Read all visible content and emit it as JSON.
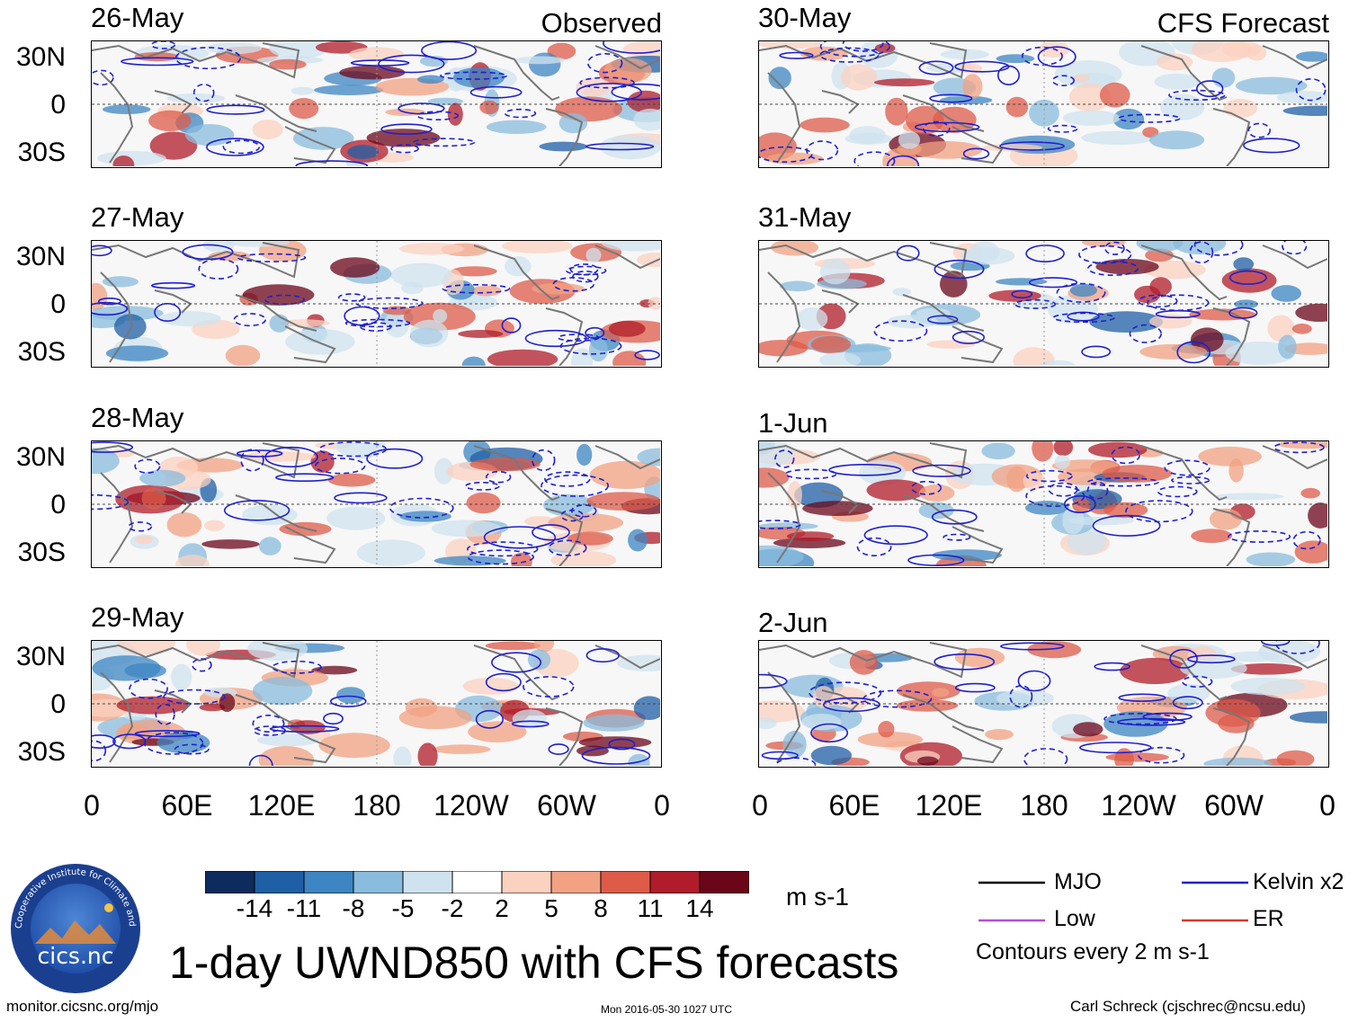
{
  "headers": {
    "observed": "Observed",
    "forecast": "CFS Forecast"
  },
  "panels": [
    {
      "date": "26-May",
      "group": "observed"
    },
    {
      "date": "27-May",
      "group": "observed"
    },
    {
      "date": "28-May",
      "group": "observed"
    },
    {
      "date": "29-May",
      "group": "observed"
    },
    {
      "date": "30-May",
      "group": "forecast"
    },
    {
      "date": "31-May",
      "group": "forecast"
    },
    {
      "date": "1-Jun",
      "group": "forecast"
    },
    {
      "date": "2-Jun",
      "group": "forecast"
    }
  ],
  "y_labels": [
    "30N",
    "0",
    "30S"
  ],
  "x_labels": [
    "0",
    "60E",
    "120E",
    "180",
    "120W",
    "60W",
    "0"
  ],
  "colorbar": {
    "ticks": [
      "-14",
      "-11",
      "-8",
      "-5",
      "-2",
      "2",
      "5",
      "8",
      "11",
      "14"
    ],
    "colors": [
      "#0d2b5c",
      "#1f5fa5",
      "#3d85c3",
      "#8abcdd",
      "#cfe3ef",
      "#ffffff",
      "#fbd2c0",
      "#f2a183",
      "#de5b49",
      "#b01c2a",
      "#6b0519"
    ],
    "units": "m s-1"
  },
  "legend": {
    "mjo": "MJO",
    "kelvin": "Kelvin x2",
    "low": "Low",
    "er": "ER",
    "contours": "Contours every 2 m s-1",
    "colors": {
      "mjo": "#000000",
      "kelvin": "#1f1fcf",
      "low": "#b54ad6",
      "er": "#d63a2a"
    }
  },
  "title": "1-day UWND850 with CFS forecasts",
  "logo_text": "cics.nc",
  "logo_ring_text": "Cooperative Institute for Climate and Satellites",
  "footer": {
    "url": "monitor.cicsnc.org/mjo",
    "timestamp": "Mon 2016-05-30 1027 UTC",
    "author": "Carl Schreck (cjschrec@ncsu.edu)"
  }
}
